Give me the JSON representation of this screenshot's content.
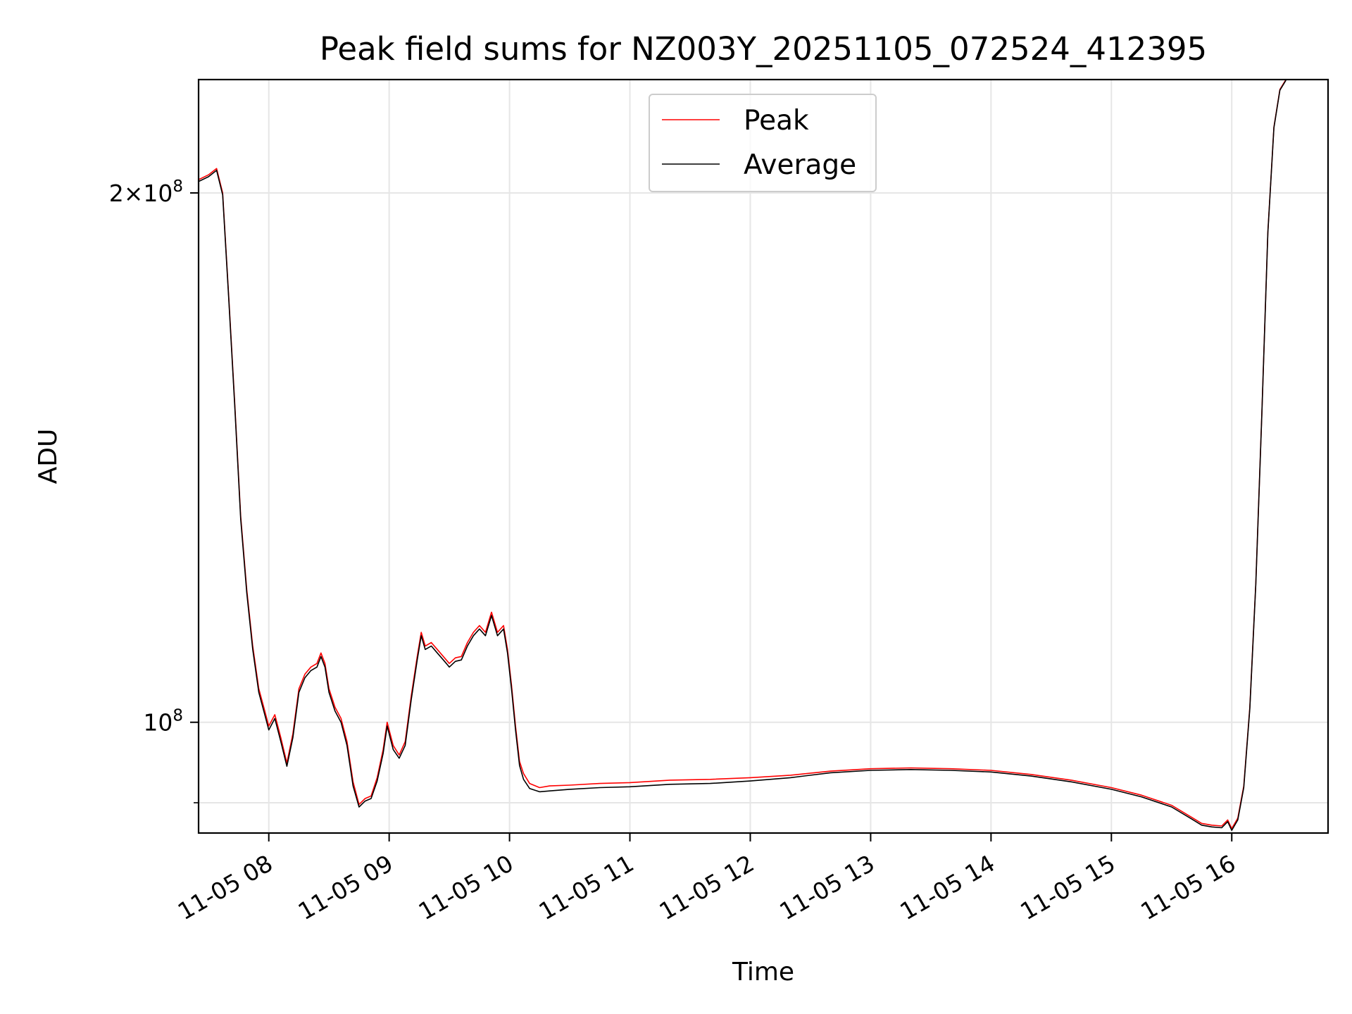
{
  "chart_data": {
    "type": "line",
    "title": "Peak field sums for NZ003Y_20251105_072524_412395",
    "xlabel": "Time",
    "ylabel": "ADU",
    "yscale": "log",
    "xlim": [
      "2025-11-05T07:25",
      "2025-11-05T16:48"
    ],
    "ylim": [
      86500000,
      232000000
    ],
    "x_ticks": [
      {
        "value": "2025-11-05T08:00",
        "label": "11-05 08"
      },
      {
        "value": "2025-11-05T09:00",
        "label": "11-05 09"
      },
      {
        "value": "2025-11-05T10:00",
        "label": "11-05 10"
      },
      {
        "value": "2025-11-05T11:00",
        "label": "11-05 11"
      },
      {
        "value": "2025-11-05T12:00",
        "label": "11-05 12"
      },
      {
        "value": "2025-11-05T13:00",
        "label": "11-05 13"
      },
      {
        "value": "2025-11-05T14:00",
        "label": "11-05 14"
      },
      {
        "value": "2025-11-05T15:00",
        "label": "11-05 15"
      },
      {
        "value": "2025-11-05T16:00",
        "label": "11-05 16"
      }
    ],
    "y_major_ticks": [
      {
        "value": 100000000,
        "mantissa": "",
        "base": "10",
        "exponent": "8"
      },
      {
        "value": 200000000,
        "mantissa": "2",
        "base": "10",
        "exponent": "8"
      }
    ],
    "y_minor_ticks": [
      90000000
    ],
    "grid": true,
    "legend_position": "upper center",
    "series": [
      {
        "name": "Peak",
        "color": "#ff0000",
        "points": [
          [
            "2025-11-05T07:25",
            203500000
          ],
          [
            "2025-11-05T07:30",
            204800000
          ],
          [
            "2025-11-05T07:34",
            206500000
          ],
          [
            "2025-11-05T07:37",
            200000000
          ],
          [
            "2025-11-05T07:40",
            175000000
          ],
          [
            "2025-11-05T07:43",
            152000000
          ],
          [
            "2025-11-05T07:46",
            131000000
          ],
          [
            "2025-11-05T07:49",
            119000000
          ],
          [
            "2025-11-05T07:52",
            110500000
          ],
          [
            "2025-11-05T07:55",
            104500000
          ],
          [
            "2025-11-05T07:58",
            101500000
          ],
          [
            "2025-11-05T08:00",
            99500000
          ],
          [
            "2025-11-05T08:03",
            101000000
          ],
          [
            "2025-11-05T08:06",
            98000000
          ],
          [
            "2025-11-05T08:09",
            94800000
          ],
          [
            "2025-11-05T08:12",
            98500000
          ],
          [
            "2025-11-05T08:15",
            104500000
          ],
          [
            "2025-11-05T08:18",
            106500000
          ],
          [
            "2025-11-05T08:21",
            107500000
          ],
          [
            "2025-11-05T08:24",
            108000000
          ],
          [
            "2025-11-05T08:26",
            109500000
          ],
          [
            "2025-11-05T08:28",
            108000000
          ],
          [
            "2025-11-05T08:30",
            104500000
          ],
          [
            "2025-11-05T08:33",
            102000000
          ],
          [
            "2025-11-05T08:36",
            100500000
          ],
          [
            "2025-11-05T08:39",
            97500000
          ],
          [
            "2025-11-05T08:42",
            92500000
          ],
          [
            "2025-11-05T08:45",
            89800000
          ],
          [
            "2025-11-05T08:48",
            90500000
          ],
          [
            "2025-11-05T08:51",
            90800000
          ],
          [
            "2025-11-05T08:54",
            93000000
          ],
          [
            "2025-11-05T08:57",
            96500000
          ],
          [
            "2025-11-05T08:59",
            100000000
          ],
          [
            "2025-11-05T09:02",
            97000000
          ],
          [
            "2025-11-05T09:05",
            95800000
          ],
          [
            "2025-11-05T09:08",
            97500000
          ],
          [
            "2025-11-05T09:11",
            103500000
          ],
          [
            "2025-11-05T09:14",
            109000000
          ],
          [
            "2025-11-05T09:16",
            112500000
          ],
          [
            "2025-11-05T09:18",
            110500000
          ],
          [
            "2025-11-05T09:21",
            111000000
          ],
          [
            "2025-11-05T09:24",
            110000000
          ],
          [
            "2025-11-05T09:27",
            109000000
          ],
          [
            "2025-11-05T09:30",
            108000000
          ],
          [
            "2025-11-05T09:33",
            108800000
          ],
          [
            "2025-11-05T09:36",
            109000000
          ],
          [
            "2025-11-05T09:39",
            111000000
          ],
          [
            "2025-11-05T09:42",
            112500000
          ],
          [
            "2025-11-05T09:45",
            113500000
          ],
          [
            "2025-11-05T09:48",
            112500000
          ],
          [
            "2025-11-05T09:51",
            115500000
          ],
          [
            "2025-11-05T09:54",
            112500000
          ],
          [
            "2025-11-05T09:57",
            113500000
          ],
          [
            "2025-11-05T09:59",
            110000000
          ],
          [
            "2025-11-05T10:01",
            105000000
          ],
          [
            "2025-11-05T10:03",
            99500000
          ],
          [
            "2025-11-05T10:05",
            95000000
          ],
          [
            "2025-11-05T10:07",
            93500000
          ],
          [
            "2025-11-05T10:10",
            92300000
          ],
          [
            "2025-11-05T10:15",
            91800000
          ],
          [
            "2025-11-05T10:20",
            92000000
          ],
          [
            "2025-11-05T10:30",
            92100000
          ],
          [
            "2025-11-05T10:45",
            92300000
          ],
          [
            "2025-11-05T11:00",
            92400000
          ],
          [
            "2025-11-05T11:20",
            92700000
          ],
          [
            "2025-11-05T11:40",
            92800000
          ],
          [
            "2025-11-05T12:00",
            93000000
          ],
          [
            "2025-11-05T12:20",
            93300000
          ],
          [
            "2025-11-05T12:40",
            93800000
          ],
          [
            "2025-11-05T13:00",
            94100000
          ],
          [
            "2025-11-05T13:20",
            94200000
          ],
          [
            "2025-11-05T13:40",
            94100000
          ],
          [
            "2025-11-05T14:00",
            93900000
          ],
          [
            "2025-11-05T14:20",
            93400000
          ],
          [
            "2025-11-05T14:40",
            92700000
          ],
          [
            "2025-11-05T15:00",
            91800000
          ],
          [
            "2025-11-05T15:15",
            90900000
          ],
          [
            "2025-11-05T15:30",
            89700000
          ],
          [
            "2025-11-05T15:40",
            88300000
          ],
          [
            "2025-11-05T15:45",
            87600000
          ],
          [
            "2025-11-05T15:50",
            87400000
          ],
          [
            "2025-11-05T15:55",
            87300000
          ],
          [
            "2025-11-05T15:58",
            88000000
          ],
          [
            "2025-11-05T16:00",
            87000000
          ],
          [
            "2025-11-05T16:03",
            88200000
          ],
          [
            "2025-11-05T16:06",
            92000000
          ],
          [
            "2025-11-05T16:09",
            102000000
          ],
          [
            "2025-11-05T16:12",
            120000000
          ],
          [
            "2025-11-05T16:15",
            150000000
          ],
          [
            "2025-11-05T16:18",
            190000000
          ],
          [
            "2025-11-05T16:21",
            218000000
          ],
          [
            "2025-11-05T16:24",
            229000000
          ],
          [
            "2025-11-05T16:27",
            232000000
          ]
        ]
      },
      {
        "name": "Average",
        "color": "#000000",
        "points": [
          [
            "2025-11-05T07:25",
            203000000
          ],
          [
            "2025-11-05T07:30",
            204300000
          ],
          [
            "2025-11-05T07:34",
            206000000
          ],
          [
            "2025-11-05T07:37",
            199500000
          ],
          [
            "2025-11-05T07:40",
            174500000
          ],
          [
            "2025-11-05T07:43",
            151500000
          ],
          [
            "2025-11-05T07:46",
            130500000
          ],
          [
            "2025-11-05T07:49",
            118500000
          ],
          [
            "2025-11-05T07:52",
            110000000
          ],
          [
            "2025-11-05T07:55",
            104000000
          ],
          [
            "2025-11-05T07:58",
            101000000
          ],
          [
            "2025-11-05T08:00",
            99000000
          ],
          [
            "2025-11-05T08:03",
            100500000
          ],
          [
            "2025-11-05T08:06",
            97500000
          ],
          [
            "2025-11-05T08:09",
            94400000
          ],
          [
            "2025-11-05T08:12",
            98000000
          ],
          [
            "2025-11-05T08:15",
            104000000
          ],
          [
            "2025-11-05T08:18",
            106000000
          ],
          [
            "2025-11-05T08:21",
            107000000
          ],
          [
            "2025-11-05T08:24",
            107500000
          ],
          [
            "2025-11-05T08:26",
            109000000
          ],
          [
            "2025-11-05T08:28",
            107500000
          ],
          [
            "2025-11-05T08:30",
            104000000
          ],
          [
            "2025-11-05T08:33",
            101500000
          ],
          [
            "2025-11-05T08:36",
            100000000
          ],
          [
            "2025-11-05T08:39",
            97000000
          ],
          [
            "2025-11-05T08:42",
            92000000
          ],
          [
            "2025-11-05T08:45",
            89500000
          ],
          [
            "2025-11-05T08:48",
            90200000
          ],
          [
            "2025-11-05T08:51",
            90500000
          ],
          [
            "2025-11-05T08:54",
            92600000
          ],
          [
            "2025-11-05T08:57",
            96000000
          ],
          [
            "2025-11-05T08:59",
            99500000
          ],
          [
            "2025-11-05T09:02",
            96500000
          ],
          [
            "2025-11-05T09:05",
            95400000
          ],
          [
            "2025-11-05T09:08",
            97000000
          ],
          [
            "2025-11-05T09:11",
            103000000
          ],
          [
            "2025-11-05T09:14",
            108500000
          ],
          [
            "2025-11-05T09:16",
            112000000
          ],
          [
            "2025-11-05T09:18",
            110000000
          ],
          [
            "2025-11-05T09:21",
            110500000
          ],
          [
            "2025-11-05T09:24",
            109500000
          ],
          [
            "2025-11-05T09:27",
            108500000
          ],
          [
            "2025-11-05T09:30",
            107500000
          ],
          [
            "2025-11-05T09:33",
            108300000
          ],
          [
            "2025-11-05T09:36",
            108500000
          ],
          [
            "2025-11-05T09:39",
            110500000
          ],
          [
            "2025-11-05T09:42",
            112000000
          ],
          [
            "2025-11-05T09:45",
            113000000
          ],
          [
            "2025-11-05T09:48",
            112000000
          ],
          [
            "2025-11-05T09:51",
            115000000
          ],
          [
            "2025-11-05T09:54",
            112000000
          ],
          [
            "2025-11-05T09:57",
            113000000
          ],
          [
            "2025-11-05T09:59",
            109500000
          ],
          [
            "2025-11-05T10:01",
            104500000
          ],
          [
            "2025-11-05T10:03",
            99000000
          ],
          [
            "2025-11-05T10:05",
            94500000
          ],
          [
            "2025-11-05T10:07",
            92800000
          ],
          [
            "2025-11-05T10:10",
            91700000
          ],
          [
            "2025-11-05T10:15",
            91300000
          ],
          [
            "2025-11-05T10:20",
            91400000
          ],
          [
            "2025-11-05T10:30",
            91600000
          ],
          [
            "2025-11-05T10:45",
            91800000
          ],
          [
            "2025-11-05T11:00",
            91900000
          ],
          [
            "2025-11-05T11:20",
            92200000
          ],
          [
            "2025-11-05T11:40",
            92300000
          ],
          [
            "2025-11-05T12:00",
            92600000
          ],
          [
            "2025-11-05T12:20",
            93000000
          ],
          [
            "2025-11-05T12:40",
            93600000
          ],
          [
            "2025-11-05T13:00",
            93900000
          ],
          [
            "2025-11-05T13:20",
            94000000
          ],
          [
            "2025-11-05T13:40",
            93900000
          ],
          [
            "2025-11-05T14:00",
            93700000
          ],
          [
            "2025-11-05T14:20",
            93200000
          ],
          [
            "2025-11-05T14:40",
            92500000
          ],
          [
            "2025-11-05T15:00",
            91600000
          ],
          [
            "2025-11-05T15:15",
            90700000
          ],
          [
            "2025-11-05T15:30",
            89500000
          ],
          [
            "2025-11-05T15:40",
            88100000
          ],
          [
            "2025-11-05T15:45",
            87400000
          ],
          [
            "2025-11-05T15:50",
            87200000
          ],
          [
            "2025-11-05T15:55",
            87100000
          ],
          [
            "2025-11-05T15:58",
            87800000
          ],
          [
            "2025-11-05T16:00",
            86800000
          ],
          [
            "2025-11-05T16:03",
            88000000
          ],
          [
            "2025-11-05T16:06",
            91800000
          ],
          [
            "2025-11-05T16:09",
            101800000
          ],
          [
            "2025-11-05T16:12",
            119800000
          ],
          [
            "2025-11-05T16:15",
            149800000
          ],
          [
            "2025-11-05T16:18",
            189800000
          ],
          [
            "2025-11-05T16:21",
            217800000
          ],
          [
            "2025-11-05T16:24",
            228800000
          ],
          [
            "2025-11-05T16:27",
            231800000
          ]
        ]
      }
    ]
  }
}
